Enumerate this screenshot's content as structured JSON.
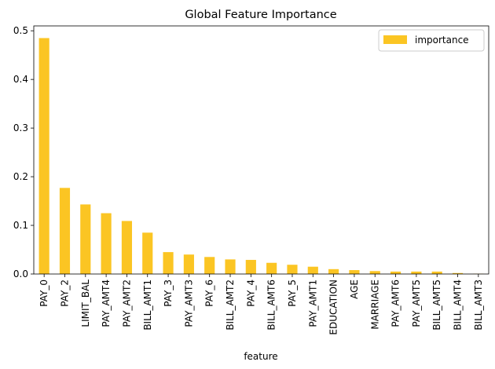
{
  "chart_data": {
    "type": "bar",
    "title": "Global Feature Importance",
    "xlabel": "feature",
    "ylabel": "",
    "ylim": [
      0,
      0.51
    ],
    "yticks": [
      "0.0",
      "0.1",
      "0.2",
      "0.3",
      "0.4",
      "0.5"
    ],
    "ytick_values": [
      0,
      0.1,
      0.2,
      0.3,
      0.4,
      0.5
    ],
    "categories": [
      "PAY_0",
      "PAY_2",
      "LIMIT_BAL",
      "PAY_AMT4",
      "PAY_AMT2",
      "BILL_AMT1",
      "PAY_3",
      "PAY_AMT3",
      "PAY_6",
      "BILL_AMT2",
      "PAY_4",
      "BILL_AMT6",
      "PAY_5",
      "PAY_AMT1",
      "EDUCATION",
      "AGE",
      "MARRIAGE",
      "PAY_AMT6",
      "PAY_AMT5",
      "BILL_AMT5",
      "BILL_AMT4",
      "BILL_AMT3"
    ],
    "series": [
      {
        "name": "importance",
        "color": "#fbc523",
        "values": [
          0.485,
          0.177,
          0.143,
          0.125,
          0.109,
          0.085,
          0.045,
          0.04,
          0.035,
          0.03,
          0.029,
          0.023,
          0.019,
          0.015,
          0.01,
          0.008,
          0.006,
          0.005,
          0.005,
          0.005,
          0.002,
          0.0005
        ]
      }
    ],
    "legend_position": "top-right",
    "grid": false
  }
}
